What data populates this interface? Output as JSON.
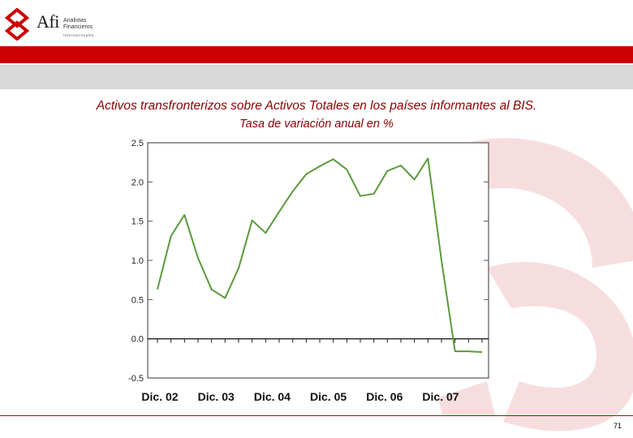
{
  "logo": {
    "brand": "Afi",
    "line1": "Analistas",
    "line2": "Financieros",
    "line3": "Internacionales"
  },
  "colors": {
    "brand_red": "#cc0000",
    "title_color": "#8b0000",
    "series_color": "#5a9a3c",
    "watermark": "#f7dede"
  },
  "slide": {
    "title": "Activos transfronterizos sobre Activos Totales en los países informantes al BIS.",
    "subtitle": "Tasa de variación anual en %",
    "page_number": "71"
  },
  "chart_data": {
    "type": "line",
    "title": "",
    "xlabel": "",
    "ylabel": "",
    "ylim": [
      -0.5,
      2.5
    ],
    "yticks": [
      2.5,
      2.0,
      1.5,
      1.0,
      0.5,
      0.0,
      -0.5
    ],
    "ytick_labels": [
      "2.5",
      "2.0",
      "1.5",
      "1.0",
      "0.5",
      "0.0",
      "-0.5"
    ],
    "xtick_labels": [
      "Dic. 02",
      "Dic. 03",
      "Dic. 04",
      "Dic. 05",
      "Dic. 06",
      "Dic. 07"
    ],
    "grid": false,
    "zero_line": true,
    "series": [
      {
        "values": [
          0.63,
          1.31,
          1.58,
          1.03,
          0.63,
          0.52,
          0.9,
          1.51,
          1.35,
          1.62,
          1.88,
          2.1,
          2.2,
          2.29,
          2.16,
          1.82,
          1.85,
          2.14,
          2.21,
          2.03,
          2.3,
          1.0,
          -0.16,
          -0.16,
          -0.17
        ]
      }
    ]
  }
}
